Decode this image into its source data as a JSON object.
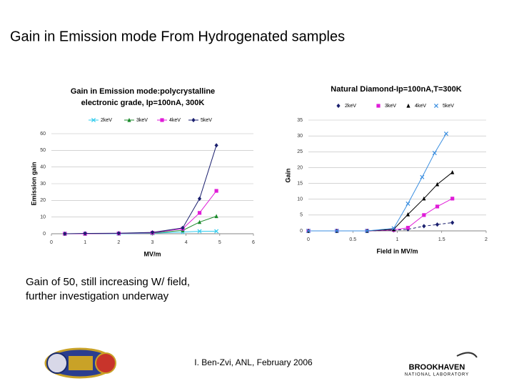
{
  "slide": {
    "title": "Gain in Emission mode From Hydrogenated samples",
    "caption": [
      "Gain of 50, still increasing W/ field,",
      "further investigation underway"
    ],
    "footer": "I. Ben-Zvi, ANL, February 2006",
    "logo_text": [
      "BROOKHAVEN",
      "NATIONAL LABORATORY"
    ]
  },
  "chart_data": [
    {
      "type": "line",
      "title": [
        "Gain in Emission mode:polycrystalline",
        "electronic grade, Ip=100nA, 300K"
      ],
      "x_label": "MV/m",
      "y_label": "Emission gain",
      "xlim": [
        0,
        6
      ],
      "xticks": [
        0,
        1,
        2,
        3,
        4,
        5,
        6
      ],
      "ylim": [
        0,
        60
      ],
      "yticks": [
        0,
        10,
        20,
        30,
        40,
        50,
        60
      ],
      "grid": true,
      "series": [
        {
          "name": "2keV",
          "color": "#33ccee",
          "marker": "x",
          "line_style": "solid",
          "x": [
            0.4,
            1,
            2,
            3,
            3.9,
            4.4,
            4.9
          ],
          "values": [
            0,
            0,
            0,
            0.3,
            1,
            1.5,
            1.5
          ]
        },
        {
          "name": "3keV",
          "color": "#1a8a2a",
          "marker": "triangle",
          "line_style": "solid",
          "x": [
            0.4,
            1,
            2,
            3,
            3.9,
            4.4,
            4.9
          ],
          "values": [
            0,
            0,
            0.2,
            0.5,
            2,
            7,
            10.5
          ]
        },
        {
          "name": "4keV",
          "color": "#e01cd8",
          "marker": "square",
          "line_style": "solid",
          "x": [
            0.4,
            1,
            2,
            3,
            3.9,
            4.4,
            4.9
          ],
          "values": [
            0,
            0,
            0.2,
            0.6,
            3,
            12.5,
            25.7
          ]
        },
        {
          "name": "5keV",
          "color": "#1a1f6e",
          "marker": "diamond",
          "line_style": "solid",
          "x": [
            0.4,
            1,
            2,
            3,
            3.9,
            4.4,
            4.9
          ],
          "values": [
            0,
            0.2,
            0.3,
            0.8,
            3.5,
            21,
            53
          ]
        }
      ]
    },
    {
      "type": "line",
      "title": [
        "Natural Diamond-Ip=100nA,T=300K"
      ],
      "x_label": "Field in MV/m",
      "y_label": "Gain",
      "xlim": [
        0,
        2
      ],
      "xticks": [
        0,
        0.5,
        1,
        1.5,
        2
      ],
      "ylim": [
        0,
        35
      ],
      "yticks": [
        0,
        5,
        10,
        15,
        20,
        25,
        30,
        35
      ],
      "grid": true,
      "series": [
        {
          "name": "2keV",
          "color": "#1a1f6e",
          "marker": "diamond",
          "line_style": "dashed",
          "x": [
            0,
            0.32,
            0.66,
            0.96,
            1.12,
            1.3,
            1.45,
            1.62
          ],
          "values": [
            0,
            0,
            0,
            0.2,
            0.5,
            1.5,
            2,
            2.6
          ]
        },
        {
          "name": "3keV",
          "color": "#e01cd8",
          "marker": "square",
          "line_style": "solid",
          "x": [
            0,
            0.32,
            0.66,
            0.96,
            1.12,
            1.3,
            1.45,
            1.62
          ],
          "values": [
            0,
            0,
            0,
            0.3,
            1,
            5,
            7.7,
            10.2
          ]
        },
        {
          "name": "4keV",
          "color": "#000000",
          "marker": "triangle",
          "line_style": "solid",
          "x": [
            0,
            0.32,
            0.66,
            0.96,
            1.12,
            1.3,
            1.45,
            1.62
          ],
          "values": [
            0,
            0,
            0,
            0.5,
            5.2,
            10.2,
            14.7,
            18.5
          ]
        },
        {
          "name": "5keV",
          "color": "#3a8ee0",
          "marker": "x",
          "line_style": "solid",
          "x": [
            0,
            0.32,
            0.66,
            0.96,
            1.12,
            1.28,
            1.42,
            1.55
          ],
          "values": [
            0,
            0,
            0,
            0.8,
            8.6,
            17,
            24.6,
            30.7
          ]
        }
      ]
    }
  ]
}
